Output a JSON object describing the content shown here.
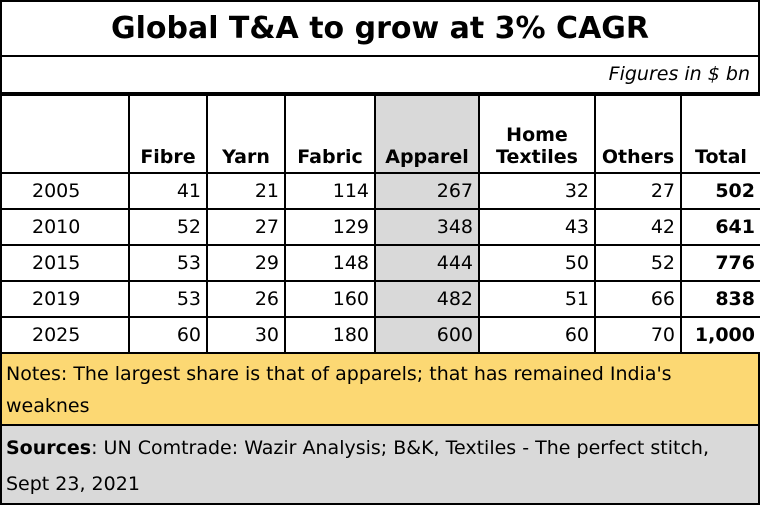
{
  "title": "Global T&A to grow at 3% CAGR",
  "units_note": "Figures in $ bn",
  "table": {
    "headers": [
      "",
      "Fibre",
      "Yarn",
      "Fabric",
      "Apparel",
      "Home Textiles",
      "Others",
      "Total"
    ],
    "rows": [
      {
        "year": "2005",
        "fibre": "41",
        "yarn": "21",
        "fabric": "114",
        "apparel": "267",
        "home_textiles": "32",
        "others": "27",
        "total": "502"
      },
      {
        "year": "2010",
        "fibre": "52",
        "yarn": "27",
        "fabric": "129",
        "apparel": "348",
        "home_textiles": "43",
        "others": "42",
        "total": "641"
      },
      {
        "year": "2015",
        "fibre": "53",
        "yarn": "29",
        "fabric": "148",
        "apparel": "444",
        "home_textiles": "50",
        "others": "52",
        "total": "776"
      },
      {
        "year": "2019",
        "fibre": "53",
        "yarn": "26",
        "fabric": "160",
        "apparel": "482",
        "home_textiles": "51",
        "others": "66",
        "total": "838"
      },
      {
        "year": "2025",
        "fibre": "60",
        "yarn": "30",
        "fabric": "180",
        "apparel": "600",
        "home_textiles": "60",
        "others": "70",
        "total": "1,000"
      }
    ]
  },
  "notes": "Notes: The largest share is that of apparels; that has remained India's weaknes",
  "sources": {
    "label": "Sources",
    "text": ": UN Comtrade: Wazir Analysis; B&K, Textiles - The perfect stitch, Sept 23, 2021"
  },
  "colors": {
    "notes_bg": "#fcd873",
    "sources_bg": "#d9d9d9",
    "apparel_bg": "#d9d9d9"
  }
}
